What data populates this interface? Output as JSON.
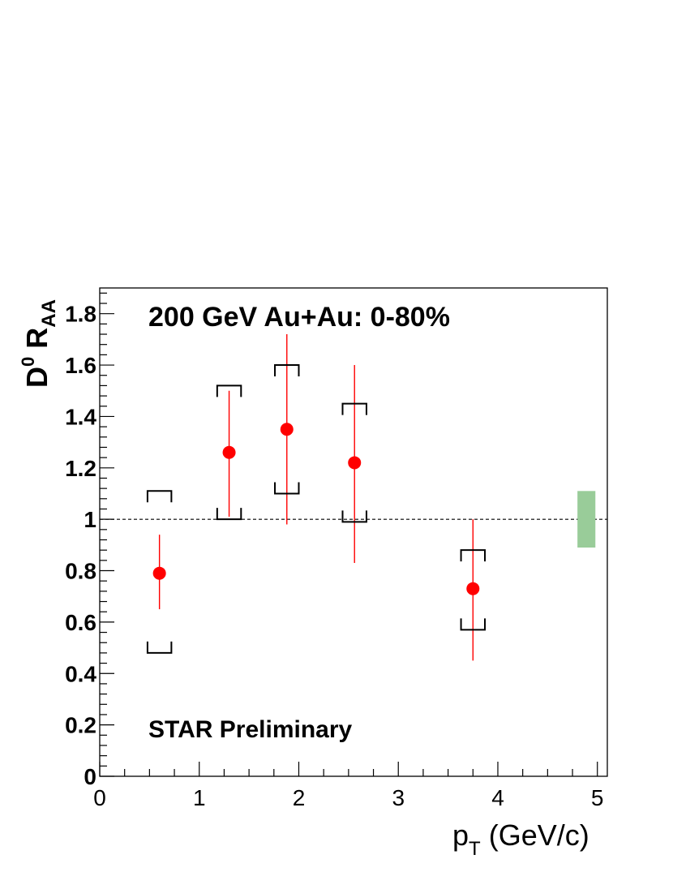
{
  "chart_data": {
    "type": "scatter",
    "title": "200 GeV Au+Au: 0-80%",
    "annotation": "STAR Preliminary",
    "xlabel": {
      "main": "p",
      "sub": "T",
      "unit": " (GeV/c)"
    },
    "ylabel": {
      "main": "D",
      "sup": "0",
      "main2": " R",
      "sub": "AA"
    },
    "xlim": [
      0,
      5.1
    ],
    "ylim": [
      0,
      1.9
    ],
    "x_ticks": [
      0,
      1,
      2,
      3,
      4,
      5
    ],
    "x_tick_labels": [
      "0",
      "1",
      "2",
      "3",
      "4",
      "5"
    ],
    "y_ticks": [
      0,
      0.2,
      0.4,
      0.6,
      0.8,
      1.0,
      1.2,
      1.4,
      1.6,
      1.8
    ],
    "y_tick_labels": [
      "0",
      "0.2",
      "0.4",
      "0.6",
      "0.8",
      "1",
      "1.2",
      "1.4",
      "1.6",
      "1.8"
    ],
    "reference_line": 1.0,
    "grid": false,
    "marker_color": "#ff0000",
    "band_color": "#99cc99",
    "normalization_band": {
      "x": [
        4.8,
        4.98
      ],
      "y": [
        0.89,
        1.11
      ]
    },
    "points": [
      {
        "x": 0.6,
        "y": 0.79,
        "stat_low": 0.65,
        "stat_high": 0.94,
        "sys_low": 0.48,
        "sys_high": 1.11,
        "sys_halfwidth": 0.12
      },
      {
        "x": 1.3,
        "y": 1.26,
        "stat_low": 1.01,
        "stat_high": 1.5,
        "sys_low": 1.0,
        "sys_high": 1.52,
        "sys_halfwidth": 0.12
      },
      {
        "x": 1.88,
        "y": 1.35,
        "stat_low": 0.98,
        "stat_high": 1.72,
        "sys_low": 1.1,
        "sys_high": 1.6,
        "sys_halfwidth": 0.12
      },
      {
        "x": 2.56,
        "y": 1.22,
        "stat_low": 0.83,
        "stat_high": 1.6,
        "sys_low": 0.99,
        "sys_high": 1.45,
        "sys_halfwidth": 0.12
      },
      {
        "x": 3.75,
        "y": 0.73,
        "stat_low": 0.45,
        "stat_high": 1.0,
        "sys_low": 0.57,
        "sys_high": 0.88,
        "sys_halfwidth": 0.12
      }
    ]
  }
}
